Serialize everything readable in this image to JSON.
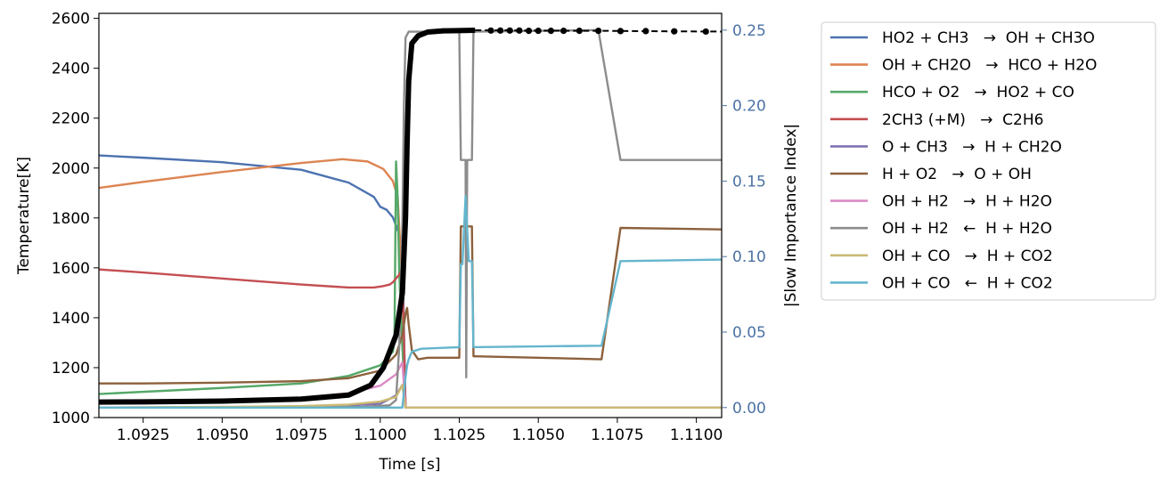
{
  "chart_data": {
    "type": "line",
    "xlabel": "Time [s]",
    "ylabel_left": "Temperature[K]",
    "ylabel_right": "|Slow Importance Index|",
    "right_axis_color": "#4c72a4",
    "xlim": [
      1.0911,
      1.1108
    ],
    "ylim_left": [
      1000,
      2620
    ],
    "ylim_right": [
      -0.0066,
      0.2611
    ],
    "xticks": [
      1.0925,
      1.095,
      1.0975,
      1.1,
      1.1025,
      1.105,
      1.1075,
      1.11
    ],
    "xtick_labels": [
      "1.0925",
      "1.0950",
      "1.0975",
      "1.1000",
      "1.1025",
      "1.1050",
      "1.1075",
      "1.1100"
    ],
    "yticks_left": [
      1000,
      1200,
      1400,
      1600,
      1800,
      2000,
      2200,
      2400,
      2600
    ],
    "ytick_labels_left": [
      "1000",
      "1200",
      "1400",
      "1600",
      "1800",
      "2000",
      "2200",
      "2400",
      "2600"
    ],
    "yticks_right": [
      0.0,
      0.05,
      0.1,
      0.15,
      0.2,
      0.25
    ],
    "ytick_labels_right": [
      "0.00",
      "0.05",
      "0.10",
      "0.15",
      "0.20",
      "0.25"
    ],
    "grid": false,
    "legend_position": "outside-right",
    "temperature": {
      "color": "#000000",
      "axis": "left",
      "points": [
        [
          1.0911,
          1062
        ],
        [
          1.0925,
          1063
        ],
        [
          1.095,
          1066
        ],
        [
          1.0975,
          1074
        ],
        [
          1.099,
          1090
        ],
        [
          1.0997,
          1130
        ],
        [
          1.1001,
          1200
        ],
        [
          1.1005,
          1330
        ],
        [
          1.1007,
          1500
        ],
        [
          1.1008,
          1800
        ],
        [
          1.10085,
          2100
        ],
        [
          1.1009,
          2350
        ],
        [
          1.101,
          2500
        ],
        [
          1.1012,
          2530
        ],
        [
          1.1015,
          2545
        ],
        [
          1.102,
          2550
        ],
        [
          1.103,
          2552
        ],
        [
          1.104,
          2552
        ],
        [
          1.105,
          2551
        ],
        [
          1.106,
          2550
        ],
        [
          1.107,
          2550
        ],
        [
          1.108,
          2549
        ],
        [
          1.109,
          2548
        ],
        [
          1.1108,
          2547
        ]
      ],
      "markers": [
        [
          1.1035,
          2551
        ],
        [
          1.1038,
          2551
        ],
        [
          1.1041,
          2551
        ],
        [
          1.1044,
          2551
        ],
        [
          1.1047,
          2550
        ],
        [
          1.105,
          2550
        ],
        [
          1.1054,
          2550
        ],
        [
          1.1058,
          2550
        ],
        [
          1.1063,
          2550
        ],
        [
          1.1069,
          2550
        ],
        [
          1.1076,
          2549
        ],
        [
          1.1084,
          2549
        ],
        [
          1.1093,
          2548
        ],
        [
          1.1103,
          2547
        ]
      ]
    },
    "series": [
      {
        "name": "HO2 + CH3   →  OH + CH3O",
        "color": "#4c72b0",
        "axis": "right",
        "points": [
          [
            1.0911,
            0.167
          ],
          [
            1.0925,
            0.1655
          ],
          [
            1.095,
            0.1625
          ],
          [
            1.0975,
            0.1575
          ],
          [
            1.099,
            0.149
          ],
          [
            1.0998,
            0.1395
          ],
          [
            1.1,
            0.133
          ],
          [
            1.1002,
            0.131
          ],
          [
            1.1004,
            0.126
          ],
          [
            1.1006,
            0.115
          ],
          [
            1.1007,
            0.105
          ],
          [
            1.1008,
            0.0
          ],
          [
            1.1108,
            0.0
          ]
        ]
      },
      {
        "name": "OH + CH2O   →  HCO + H2O",
        "color": "#dd8452",
        "axis": "right",
        "points": [
          [
            1.0911,
            0.1455
          ],
          [
            1.0925,
            0.1495
          ],
          [
            1.095,
            0.156
          ],
          [
            1.0975,
            0.162
          ],
          [
            1.0988,
            0.1645
          ],
          [
            1.0996,
            0.163
          ],
          [
            1.1001,
            0.158
          ],
          [
            1.1004,
            0.15
          ],
          [
            1.1005,
            0.143
          ],
          [
            1.10055,
            0.14
          ],
          [
            1.1007,
            0.08
          ],
          [
            1.1008,
            0.0
          ],
          [
            1.1108,
            0.0
          ]
        ]
      },
      {
        "name": "HCO + O2   →  HO2 + CO",
        "color": "#55a868",
        "axis": "right",
        "points": [
          [
            1.0911,
            0.009
          ],
          [
            1.095,
            0.013
          ],
          [
            1.0975,
            0.016
          ],
          [
            1.099,
            0.021
          ],
          [
            1.1,
            0.028
          ],
          [
            1.1004,
            0.037
          ],
          [
            1.10045,
            0.045
          ],
          [
            1.1005,
            0.163
          ],
          [
            1.10055,
            0.14
          ],
          [
            1.1006,
            0.09
          ],
          [
            1.1007,
            0.04
          ],
          [
            1.1008,
            0.0
          ],
          [
            1.1108,
            0.0
          ]
        ]
      },
      {
        "name": "2CH3 (+M)   →  C2H6",
        "color": "#c44e52",
        "axis": "right",
        "points": [
          [
            1.0911,
            0.0915
          ],
          [
            1.0925,
            0.0895
          ],
          [
            1.095,
            0.0855
          ],
          [
            1.0975,
            0.0815
          ],
          [
            1.099,
            0.0795
          ],
          [
            1.0998,
            0.0795
          ],
          [
            1.1001,
            0.0805
          ],
          [
            1.1003,
            0.0815
          ],
          [
            1.1004,
            0.083
          ],
          [
            1.1006,
            0.088
          ],
          [
            1.1007,
            0.092
          ],
          [
            1.1008,
            0.0
          ],
          [
            1.1108,
            0.0
          ]
        ]
      },
      {
        "name": "O + CH3   →  H + CH2O",
        "color": "#8172b2",
        "axis": "right",
        "points": [
          [
            1.0911,
            0.0
          ],
          [
            1.098,
            0.0005
          ],
          [
            1.1,
            0.0025
          ],
          [
            1.1005,
            0.008
          ],
          [
            1.1007,
            0.015
          ],
          [
            1.1008,
            0.0
          ],
          [
            1.1108,
            0.0
          ]
        ]
      },
      {
        "name": "H + O2   →  O + OH",
        "color": "#8c613c",
        "axis": "right",
        "points": [
          [
            1.0911,
            0.016
          ],
          [
            1.0925,
            0.016
          ],
          [
            1.095,
            0.0165
          ],
          [
            1.0975,
            0.0175
          ],
          [
            1.099,
            0.0195
          ],
          [
            1.1,
            0.0245
          ],
          [
            1.1005,
            0.035
          ],
          [
            1.1007,
            0.048
          ],
          [
            1.1008,
            0.062
          ],
          [
            1.10085,
            0.066
          ],
          [
            1.1009,
            0.055
          ],
          [
            1.101,
            0.038
          ],
          [
            1.1012,
            0.032
          ],
          [
            1.1015,
            0.033
          ],
          [
            1.1025,
            0.033
          ],
          [
            1.10255,
            0.12
          ],
          [
            1.1029,
            0.12
          ],
          [
            1.10295,
            0.034
          ],
          [
            1.103,
            0.034
          ],
          [
            1.107,
            0.032
          ],
          [
            1.1076,
            0.119
          ],
          [
            1.1108,
            0.118
          ]
        ]
      },
      {
        "name": "OH + H2   →  H + H2O",
        "color": "#da8bc3",
        "axis": "right",
        "points": [
          [
            1.0911,
            0.004
          ],
          [
            1.095,
            0.0045
          ],
          [
            1.0975,
            0.0065
          ],
          [
            1.099,
            0.0095
          ],
          [
            1.1,
            0.0145
          ],
          [
            1.1005,
            0.022
          ],
          [
            1.1007,
            0.03
          ],
          [
            1.1008,
            0.0
          ],
          [
            1.1108,
            0.0
          ]
        ]
      },
      {
        "name": "OH + H2   ←  H + H2O",
        "color": "#8c8c8c",
        "axis": "right",
        "points": [
          [
            1.0911,
            0.0
          ],
          [
            1.0995,
            0.0005
          ],
          [
            1.1003,
            0.0015
          ],
          [
            1.1005,
            0.005
          ],
          [
            1.1006,
            0.04
          ],
          [
            1.1007,
            0.12
          ],
          [
            1.10075,
            0.2
          ],
          [
            1.1008,
            0.245
          ],
          [
            1.1009,
            0.249
          ],
          [
            1.1025,
            0.249
          ],
          [
            1.10255,
            0.164
          ],
          [
            1.1027,
            0.164
          ],
          [
            1.10272,
            0.02
          ],
          [
            1.10275,
            0.164
          ],
          [
            1.1029,
            0.164
          ],
          [
            1.10295,
            0.249
          ],
          [
            1.1069,
            0.25
          ],
          [
            1.1076,
            0.164
          ],
          [
            1.1108,
            0.164
          ]
        ]
      },
      {
        "name": "OH + CO   →  H + CO2",
        "color": "#ccb974",
        "axis": "right",
        "points": [
          [
            1.0911,
            0.0
          ],
          [
            1.095,
            0.0005
          ],
          [
            1.0975,
            0.001
          ],
          [
            1.099,
            0.002
          ],
          [
            1.1,
            0.004
          ],
          [
            1.1005,
            0.007
          ],
          [
            1.1007,
            0.015
          ],
          [
            1.1008,
            0.0
          ],
          [
            1.1108,
            0.0
          ]
        ]
      },
      {
        "name": "OH + CO   ←  H + CO2",
        "color": "#64b5cd",
        "axis": "right",
        "points": [
          [
            1.0911,
            0.0
          ],
          [
            1.1007,
            0.0
          ],
          [
            1.1008,
            0.02
          ],
          [
            1.10085,
            0.028
          ],
          [
            1.1009,
            0.032
          ],
          [
            1.101,
            0.037
          ],
          [
            1.1013,
            0.039
          ],
          [
            1.1025,
            0.04
          ],
          [
            1.10255,
            0.095
          ],
          [
            1.1026,
            0.095
          ],
          [
            1.1027,
            0.14
          ],
          [
            1.1028,
            0.097
          ],
          [
            1.1029,
            0.097
          ],
          [
            1.10295,
            0.04
          ],
          [
            1.107,
            0.041
          ],
          [
            1.1076,
            0.097
          ],
          [
            1.1108,
            0.098
          ]
        ]
      }
    ]
  }
}
